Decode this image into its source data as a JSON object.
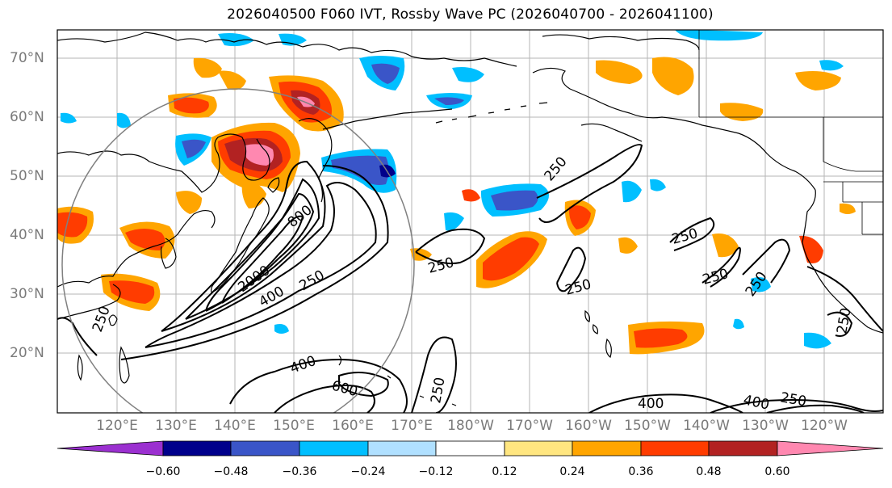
{
  "title": "2026040500 F060 IVT, Rossby Wave PC (2026040700 - 2026041100)",
  "lat_labels": [
    "70°N",
    "60°N",
    "50°N",
    "40°N",
    "30°N",
    "20°N"
  ],
  "lon_labels": [
    "120°E",
    "130°E",
    "140°E",
    "150°E",
    "160°E",
    "170°E",
    "180°W",
    "170°W",
    "160°W",
    "150°W",
    "140°W",
    "130°W",
    "120°W"
  ],
  "colorbar": {
    "ticks": [
      "−0.60",
      "−0.48",
      "−0.36",
      "−0.24",
      "−0.12",
      "0.12",
      "0.24",
      "0.36",
      "0.48",
      "0.60"
    ],
    "colors": [
      "#9b30d0",
      "#00008b",
      "#3a55c8",
      "#00bfff",
      "#b0e0ff",
      "#ffffff",
      "#ffe680",
      "#ffa500",
      "#ff3c00",
      "#b22222",
      "#ff88b0"
    ]
  },
  "contour_labels": [
    "800",
    "2000",
    "400",
    "250",
    "250",
    "250",
    "250",
    "250",
    "250",
    "250",
    "250",
    "400",
    "600",
    "250",
    "400",
    "400",
    "250",
    "250"
  ]
}
